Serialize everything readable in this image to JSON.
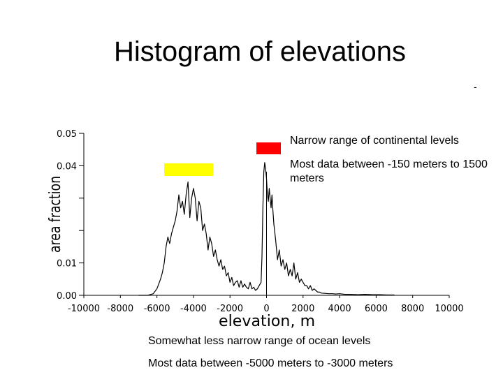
{
  "slide": {
    "title": "Histogram of elevations",
    "stray_mark": "-"
  },
  "annotations": {
    "continental_heading": "Narrow range of continental levels",
    "continental_detail": "Most data between -150 meters to 1500 meters",
    "ocean_heading": "Somewhat less narrow range of ocean levels",
    "ocean_detail": "Most data between -5000 meters to -3000 meters"
  },
  "colors": {
    "continental_marker": "#ff0000",
    "ocean_marker": "#ffff00",
    "line": "#000000"
  },
  "chart_data": {
    "type": "line",
    "title": "",
    "xlabel": "elevation, m",
    "ylabel": "area fraction",
    "xlim": [
      -10000,
      10000
    ],
    "ylim": [
      0,
      0.05
    ],
    "x_ticks": [
      -10000,
      -8000,
      -6000,
      -4000,
      -2000,
      0,
      2000,
      4000,
      6000,
      8000,
      10000
    ],
    "x_tick_labels": [
      "-10000",
      "-8000",
      "-6000",
      "-4000",
      "-2000",
      "0",
      "2000",
      "4000",
      "6000",
      "8000",
      "10000"
    ],
    "y_ticks": [
      0,
      0.01,
      0.02,
      0.03,
      0.04,
      0.05
    ],
    "y_tick_labels": [
      "0.00",
      "0.01",
      "",
      "",
      "0.04",
      "0.05"
    ],
    "vertical_marker_x": 0,
    "series": [
      {
        "name": "area fraction",
        "x": [
          -6500,
          -6200,
          -6000,
          -5800,
          -5700,
          -5600,
          -5500,
          -5400,
          -5300,
          -5200,
          -5100,
          -5000,
          -4900,
          -4800,
          -4700,
          -4600,
          -4500,
          -4400,
          -4300,
          -4200,
          -4100,
          -4000,
          -3900,
          -3800,
          -3700,
          -3600,
          -3500,
          -3400,
          -3300,
          -3200,
          -3100,
          -3000,
          -2900,
          -2800,
          -2700,
          -2600,
          -2500,
          -2400,
          -2300,
          -2200,
          -2100,
          -2000,
          -1900,
          -1800,
          -1700,
          -1600,
          -1500,
          -1400,
          -1300,
          -1200,
          -1100,
          -1000,
          -900,
          -800,
          -700,
          -600,
          -500,
          -400,
          -300,
          -250,
          -200,
          -150,
          -100,
          -50,
          0,
          50,
          100,
          150,
          200,
          250,
          300,
          350,
          400,
          500,
          600,
          700,
          800,
          900,
          1000,
          1100,
          1200,
          1300,
          1400,
          1500,
          1600,
          1700,
          1800,
          1900,
          2000,
          2100,
          2200,
          2300,
          2400,
          2500,
          2600,
          2700,
          2800,
          2900,
          3000,
          3200,
          3400,
          3600,
          3800,
          4000,
          4300,
          4600,
          5000,
          5400,
          5800,
          6200,
          6600,
          7000
        ],
        "y": [
          0.0,
          0.0005,
          0.002,
          0.005,
          0.007,
          0.01,
          0.015,
          0.018,
          0.016,
          0.019,
          0.021,
          0.023,
          0.026,
          0.031,
          0.027,
          0.029,
          0.025,
          0.031,
          0.035,
          0.024,
          0.03,
          0.033,
          0.03,
          0.023,
          0.029,
          0.027,
          0.02,
          0.022,
          0.019,
          0.014,
          0.018,
          0.016,
          0.012,
          0.014,
          0.011,
          0.009,
          0.011,
          0.008,
          0.009,
          0.006,
          0.007,
          0.004,
          0.0055,
          0.003,
          0.004,
          0.0045,
          0.0025,
          0.0045,
          0.0025,
          0.0035,
          0.0025,
          0.002,
          0.004,
          0.002,
          0.0025,
          0.0015,
          0.002,
          0.003,
          0.004,
          0.012,
          0.027,
          0.038,
          0.041,
          0.039,
          0.036,
          0.031,
          0.029,
          0.033,
          0.03,
          0.027,
          0.031,
          0.026,
          0.022,
          0.017,
          0.011,
          0.014,
          0.009,
          0.011,
          0.008,
          0.01,
          0.006,
          0.008,
          0.006,
          0.01,
          0.005,
          0.007,
          0.004,
          0.005,
          0.004,
          0.003,
          0.003,
          0.002,
          0.003,
          0.0015,
          0.002,
          0.0015,
          0.001,
          0.001,
          0.0007,
          0.0006,
          0.0005,
          0.0005,
          0.0004,
          0.0005,
          0.0003,
          0.0003,
          0.0002,
          0.0003,
          0.0002,
          0.0002,
          0.0001,
          0.0001
        ]
      }
    ]
  }
}
